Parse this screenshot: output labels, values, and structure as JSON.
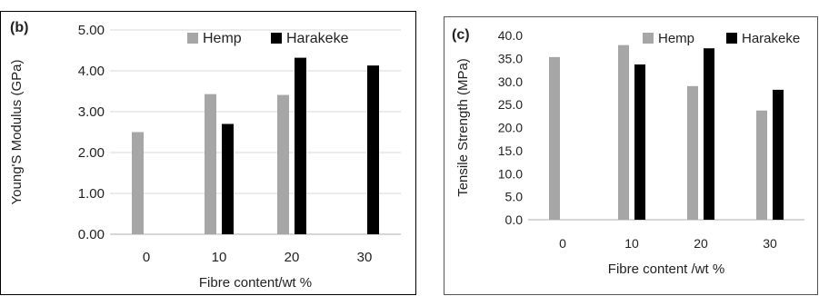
{
  "colors": {
    "hemp": "#a6a6a6",
    "harakeke": "#000000",
    "grid": "#d9d9d9",
    "axis": "#bfbfbf"
  },
  "chart_data": [
    {
      "type": "bar",
      "panel_label": "(b)",
      "categories": [
        "0",
        "10",
        "20",
        "30"
      ],
      "series": [
        {
          "name": "Hemp",
          "values": [
            2.5,
            3.43,
            3.41,
            null
          ]
        },
        {
          "name": "Harakeke",
          "values": [
            null,
            2.7,
            4.32,
            4.13
          ]
        }
      ],
      "xlabel": "Fibre content/wt %",
      "ylabel": "Young'S Modulus (GPa)",
      "ylim": [
        0,
        5
      ],
      "yticks": [
        "0.00",
        "1.00",
        "2.00",
        "3.00",
        "4.00",
        "5.00"
      ],
      "grid": true,
      "legend": "top"
    },
    {
      "type": "bar",
      "panel_label": "(c)",
      "categories": [
        "0",
        "10",
        "20",
        "30"
      ],
      "series": [
        {
          "name": "Hemp",
          "values": [
            35.3,
            37.9,
            29.0,
            23.7
          ]
        },
        {
          "name": "Harakeke",
          "values": [
            null,
            33.7,
            37.2,
            28.2
          ]
        }
      ],
      "xlabel": "Fibre content /wt %",
      "ylabel": "Tensile Strength (MPa)",
      "ylim": [
        0,
        40
      ],
      "yticks": [
        "0.0",
        "5.0",
        "10.0",
        "15.0",
        "20.0",
        "25.0",
        "30.0",
        "35.0",
        "40.0"
      ],
      "grid": false,
      "legend": "top"
    }
  ]
}
